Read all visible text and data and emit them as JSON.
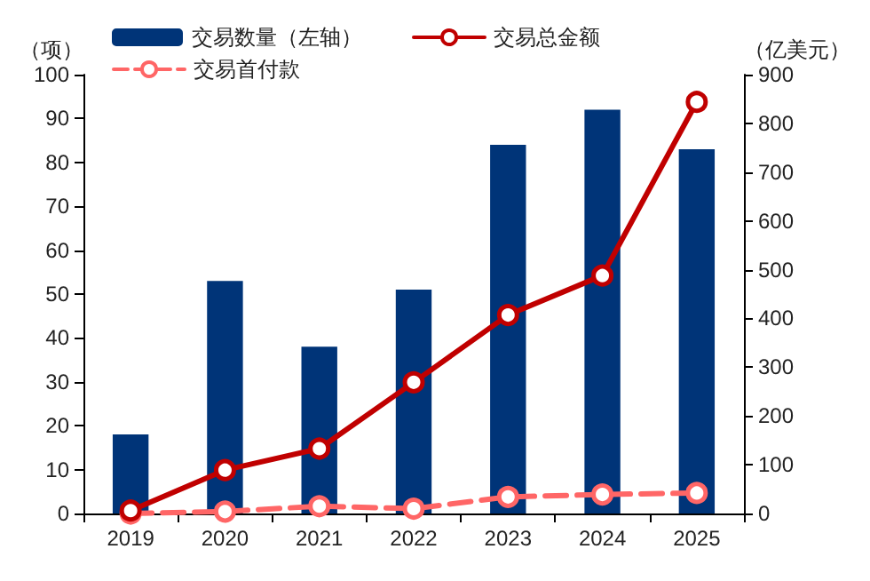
{
  "chart_data": {
    "type": "bar",
    "categories": [
      "2019",
      "2020",
      "2021",
      "2022",
      "2023",
      "2024",
      "2025"
    ],
    "ylabel": "（项）",
    "y2label": "（亿美元）",
    "ylim": [
      0,
      100
    ],
    "yticks": [
      0,
      10,
      20,
      30,
      40,
      50,
      60,
      70,
      80,
      90,
      100
    ],
    "y2lim": [
      0,
      900
    ],
    "y2ticks": [
      0,
      100,
      200,
      300,
      400,
      500,
      600,
      700,
      800,
      900
    ],
    "legend": "top",
    "grid": false,
    "series": [
      {
        "name": "交易数量（左轴）",
        "color": "#003478",
        "values": [
          18,
          53,
          38,
          51,
          84,
          92,
          83
        ]
      },
      {
        "name": "交易总金额",
        "type": "line",
        "axis": "y2",
        "color": "#c00000",
        "marker": "circle",
        "line_style": "solid",
        "values": [
          6,
          89,
          133,
          269,
          407,
          488,
          844
        ]
      },
      {
        "name": "交易首付款",
        "type": "line",
        "axis": "y2",
        "color": "#ff6666",
        "marker": "circle",
        "line_style": "dashed",
        "values": [
          0,
          4,
          15,
          10,
          34,
          39,
          42
        ]
      }
    ]
  }
}
